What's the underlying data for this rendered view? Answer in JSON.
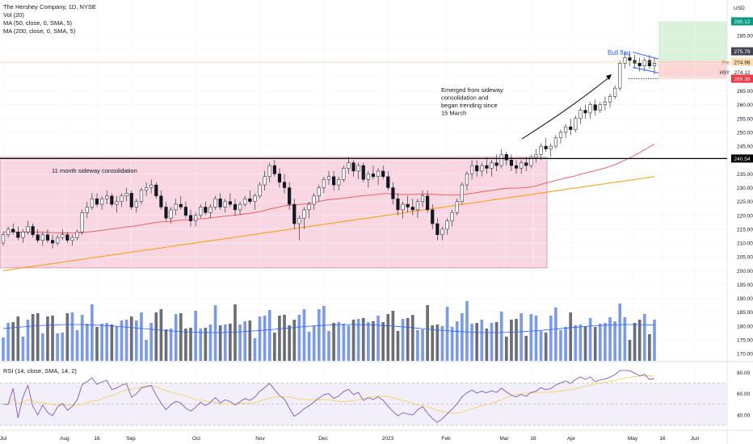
{
  "header": {
    "title": "The Hershey Company, 1D, NYSE",
    "currency": "USD",
    "indicators": [
      "Vol (20)",
      "MA (50, close, 0, SMA, 5)",
      "MA (200, close, 0, SMA, 5)"
    ],
    "rsi_label": "RSI (14, close, SMA, 14, 2)"
  },
  "annotations": {
    "bull_flag": "Bull flag",
    "emerged": [
      "Emerged from sideway",
      "consolidation and",
      "began trending since",
      "15 March"
    ],
    "consolidation": "11 month sideway consolidation"
  },
  "price_tags": {
    "target": "290.12",
    "top": "275.79",
    "pre_label": "Pre",
    "pre": "274.98",
    "hsy_label": "HSY",
    "hsy": "274.12",
    "stop": "269.39",
    "level": "240.54"
  },
  "colors": {
    "up": "#ffffff",
    "down": "#131722",
    "ma50": "#ef5350",
    "ma200": "#ff9800",
    "vol_up": "#7b9be6",
    "vol_down": "#6b6e76",
    "vol_ma": "#2962ff",
    "rsi": "#7e57c2",
    "rsi_ma": "#f5d35a",
    "zone": "#f8d7e3",
    "target_zone": "#d9f2d9",
    "stop_zone": "#fcd5d5",
    "tag_green": "#089981",
    "tag_red": "#f23645",
    "tag_dark": "#434651"
  },
  "chart_data": {
    "type": "candlestick",
    "symbol": "HSY",
    "timeframe": "1D",
    "price_axis_ticks": [
      285,
      280,
      275,
      270,
      265,
      260,
      255,
      250,
      245,
      240,
      235,
      230,
      225,
      220,
      215,
      210,
      205,
      200,
      195,
      190,
      185,
      180,
      175,
      170
    ],
    "rsi_axis_ticks": [
      80,
      60,
      40
    ],
    "x_ticks": [
      "Jul",
      "Aug",
      "16",
      "Sep",
      "Oct",
      "Nov",
      "Dec",
      "2023",
      "Feb",
      "Mar",
      "16",
      "Apr",
      "May",
      "16",
      "Jun"
    ],
    "price_range": [
      168,
      292
    ],
    "rsi_range": [
      20,
      85
    ],
    "candles": [
      [
        210,
        214,
        209,
        213
      ],
      [
        213,
        216,
        212,
        215
      ],
      [
        215,
        217,
        213,
        214
      ],
      [
        214,
        216,
        211,
        212
      ],
      [
        212,
        215,
        210,
        214
      ],
      [
        214,
        218,
        213,
        216
      ],
      [
        216,
        217,
        212,
        213
      ],
      [
        213,
        215,
        210,
        211
      ],
      [
        211,
        214,
        209,
        213
      ],
      [
        213,
        215,
        210,
        211
      ],
      [
        211,
        213,
        208,
        210
      ],
      [
        210,
        213,
        209,
        212
      ],
      [
        212,
        215,
        211,
        213
      ],
      [
        213,
        214,
        210,
        211
      ],
      [
        211,
        213,
        209,
        212
      ],
      [
        212,
        215,
        211,
        214
      ],
      [
        214,
        222,
        213,
        221
      ],
      [
        221,
        225,
        219,
        223
      ],
      [
        223,
        228,
        222,
        226
      ],
      [
        226,
        228,
        223,
        224
      ],
      [
        224,
        227,
        222,
        226
      ],
      [
        226,
        229,
        224,
        227
      ],
      [
        227,
        228,
        223,
        224
      ],
      [
        224,
        227,
        221,
        225
      ],
      [
        225,
        228,
        223,
        227
      ],
      [
        227,
        230,
        225,
        228
      ],
      [
        228,
        229,
        222,
        223
      ],
      [
        223,
        226,
        221,
        225
      ],
      [
        225,
        230,
        224,
        229
      ],
      [
        229,
        232,
        227,
        230
      ],
      [
        230,
        233,
        228,
        231
      ],
      [
        231,
        232,
        226,
        227
      ],
      [
        227,
        229,
        222,
        223
      ],
      [
        223,
        225,
        218,
        219
      ],
      [
        219,
        223,
        217,
        222
      ],
      [
        222,
        226,
        220,
        224
      ],
      [
        224,
        227,
        222,
        223
      ],
      [
        223,
        225,
        219,
        220
      ],
      [
        220,
        222,
        216,
        218
      ],
      [
        218,
        221,
        216,
        220
      ],
      [
        220,
        224,
        219,
        223
      ],
      [
        223,
        225,
        220,
        221
      ],
      [
        221,
        224,
        219,
        223
      ],
      [
        223,
        227,
        222,
        226
      ],
      [
        226,
        228,
        222,
        223
      ],
      [
        223,
        226,
        221,
        225
      ],
      [
        225,
        228,
        223,
        224
      ],
      [
        224,
        226,
        220,
        222
      ],
      [
        222,
        225,
        220,
        224
      ],
      [
        224,
        227,
        223,
        226
      ],
      [
        226,
        229,
        224,
        225
      ],
      [
        225,
        228,
        222,
        227
      ],
      [
        227,
        232,
        226,
        231
      ],
      [
        231,
        236,
        229,
        234
      ],
      [
        234,
        239,
        232,
        238
      ],
      [
        238,
        240,
        234,
        235
      ],
      [
        235,
        237,
        230,
        232
      ],
      [
        232,
        235,
        228,
        230
      ],
      [
        230,
        232,
        222,
        224
      ],
      [
        224,
        226,
        215,
        217
      ],
      [
        217,
        220,
        211,
        219
      ],
      [
        219,
        223,
        215,
        222
      ],
      [
        222,
        225,
        219,
        224
      ],
      [
        224,
        228,
        222,
        227
      ],
      [
        227,
        231,
        225,
        230
      ],
      [
        230,
        234,
        228,
        233
      ],
      [
        233,
        236,
        231,
        234
      ],
      [
        234,
        236,
        229,
        231
      ],
      [
        231,
        234,
        229,
        233
      ],
      [
        233,
        238,
        232,
        237
      ],
      [
        237,
        241,
        235,
        239
      ],
      [
        239,
        240,
        234,
        236
      ],
      [
        236,
        239,
        233,
        238
      ],
      [
        238,
        239,
        232,
        233
      ],
      [
        233,
        236,
        230,
        235
      ],
      [
        235,
        238,
        233,
        234
      ],
      [
        234,
        237,
        231,
        236
      ],
      [
        236,
        238,
        233,
        234
      ],
      [
        234,
        236,
        229,
        230
      ],
      [
        230,
        232,
        224,
        226
      ],
      [
        226,
        228,
        220,
        222
      ],
      [
        222,
        225,
        219,
        224
      ],
      [
        224,
        227,
        221,
        223
      ],
      [
        223,
        226,
        220,
        222
      ],
      [
        222,
        226,
        219,
        225
      ],
      [
        225,
        229,
        223,
        227
      ],
      [
        227,
        229,
        221,
        222
      ],
      [
        222,
        224,
        215,
        217
      ],
      [
        217,
        219,
        211,
        213
      ],
      [
        213,
        216,
        211,
        215
      ],
      [
        215,
        219,
        213,
        218
      ],
      [
        218,
        222,
        216,
        221
      ],
      [
        221,
        226,
        220,
        225
      ],
      [
        225,
        232,
        224,
        231
      ],
      [
        231,
        236,
        229,
        235
      ],
      [
        235,
        240,
        233,
        238
      ],
      [
        238,
        240,
        234,
        236
      ],
      [
        236,
        239,
        234,
        238
      ],
      [
        238,
        241,
        235,
        237
      ],
      [
        237,
        240,
        234,
        239
      ],
      [
        239,
        242,
        236,
        238
      ],
      [
        238,
        244,
        237,
        242
      ],
      [
        242,
        243,
        238,
        240
      ],
      [
        240,
        242,
        236,
        238
      ],
      [
        238,
        240,
        235,
        237
      ],
      [
        237,
        240,
        235,
        239
      ],
      [
        239,
        241,
        236,
        238
      ],
      [
        238,
        242,
        237,
        241
      ],
      [
        241,
        244,
        239,
        242
      ],
      [
        242,
        246,
        240,
        245
      ],
      [
        245,
        248,
        243,
        244
      ],
      [
        244,
        246,
        241,
        245
      ],
      [
        245,
        249,
        244,
        248
      ],
      [
        248,
        251,
        246,
        250
      ],
      [
        250,
        253,
        248,
        252
      ],
      [
        252,
        255,
        249,
        251
      ],
      [
        251,
        256,
        250,
        255
      ],
      [
        255,
        259,
        253,
        258
      ],
      [
        258,
        260,
        255,
        257
      ],
      [
        257,
        261,
        255,
        260
      ],
      [
        260,
        262,
        256,
        258
      ],
      [
        258,
        261,
        257,
        260
      ],
      [
        260,
        263,
        258,
        261
      ],
      [
        261,
        264,
        259,
        263
      ],
      [
        263,
        267,
        262,
        266
      ],
      [
        266,
        276,
        265,
        275
      ],
      [
        275,
        279,
        273,
        277
      ],
      [
        277,
        279,
        274,
        276
      ],
      [
        276,
        278,
        273,
        275
      ],
      [
        275,
        277,
        272,
        274
      ],
      [
        274,
        277,
        272,
        276
      ],
      [
        276,
        278,
        273,
        274
      ],
      [
        274,
        277,
        271,
        275
      ]
    ],
    "levels": {
      "resistance": 240.54,
      "stop": 269.39,
      "entry": 275.79,
      "target": 290.12
    },
    "rsi_levels": [
      70,
      50,
      30
    ]
  }
}
